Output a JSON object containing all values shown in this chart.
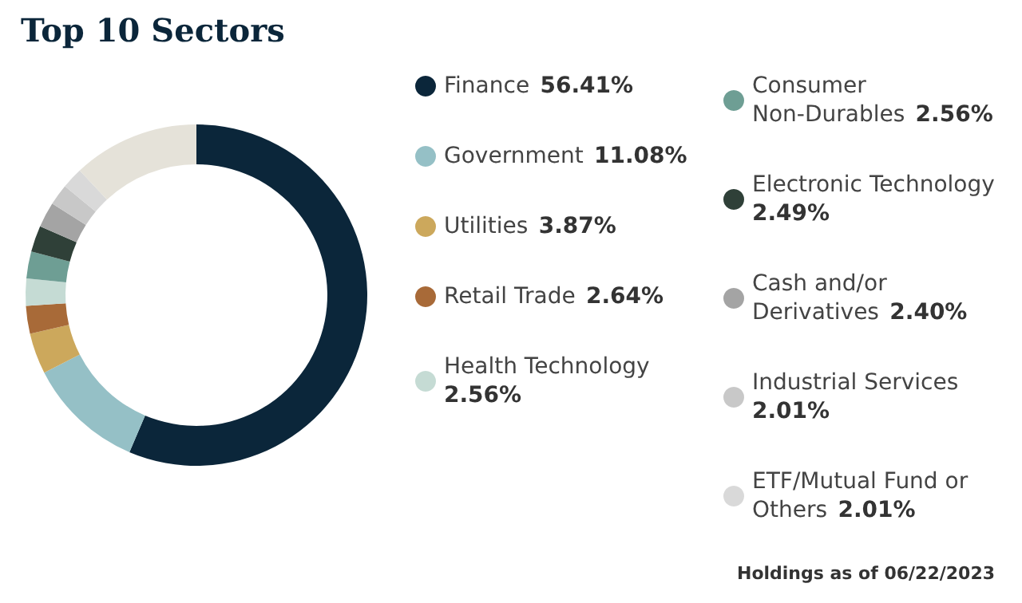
{
  "chart_data": {
    "type": "donut",
    "title": "Top 10 Sectors",
    "categories": [
      "Finance",
      "Government",
      "Utilities",
      "Retail Trade",
      "Health Technology",
      "Consumer Non-Durables",
      "Electronic Technology",
      "Cash and/or Derivatives",
      "Industrial Services",
      "ETF/Mutual Fund or Others",
      null
    ],
    "values": [
      56.41,
      11.08,
      3.87,
      2.64,
      2.56,
      2.56,
      2.49,
      2.4,
      2.01,
      2.01,
      11.97
    ],
    "value_labels": [
      "56.41%",
      "11.08%",
      "3.87%",
      "2.64%",
      "2.56%",
      "2.56%",
      "2.49%",
      "2.40%",
      "2.01%",
      "2.01%",
      null
    ],
    "colors": [
      "#0b263a",
      "#95c0c6",
      "#cca85c",
      "#a86a38",
      "#c5dbd4",
      "#6e9e94",
      "#2f4038",
      "#a4a4a4",
      "#c8c8c8",
      "#d9d9d9",
      "#e5e2d9"
    ],
    "legend": "right",
    "annotations": [
      "Holdings as of 06/22/2023"
    ]
  }
}
